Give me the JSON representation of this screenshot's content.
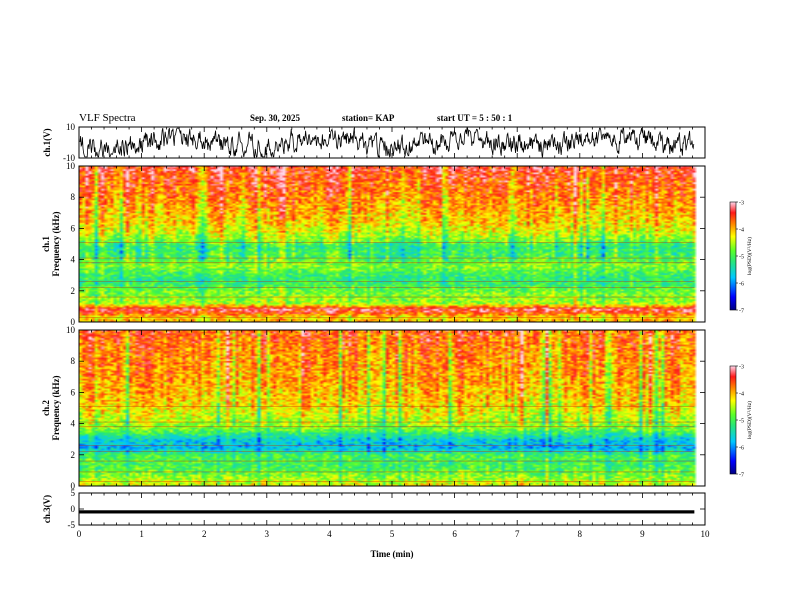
{
  "header": {
    "title": "VLF Spectra",
    "date": "Sep. 30, 2025",
    "station": "station= KAP",
    "start": "start  UT =   5  : 50 : 1"
  },
  "chart_data": [
    {
      "type": "line",
      "name": "ch1-waveform",
      "ylabel": "ch.1(V)",
      "ylim": [
        -10,
        10
      ],
      "yticks": [
        "10",
        "-10"
      ],
      "xlim": [
        0,
        10
      ]
    },
    {
      "type": "heatmap",
      "name": "ch1-spectrogram",
      "ylabel": "ch.1\nFrequency (kHz)",
      "ylim": [
        0,
        10
      ],
      "yticks": [
        "0",
        "2",
        "4",
        "6",
        "8",
        "10"
      ],
      "xlim": [
        0,
        10
      ],
      "data_end_min": 9.83,
      "colorbar": {
        "range": [
          -7,
          -3
        ],
        "ticks": [
          "-3",
          "-4",
          "-5",
          "-6",
          "-7"
        ],
        "label": "log(PSD)(V²/Hz)"
      },
      "level_profile_by_kHz": [
        {
          "f": 0.0,
          "v": -4.0
        },
        {
          "f": 0.3,
          "v": -4.2
        },
        {
          "f": 0.8,
          "v": -3.2
        },
        {
          "f": 1.2,
          "v": -4.6
        },
        {
          "f": 2.0,
          "v": -4.8
        },
        {
          "f": 2.6,
          "v": -5.2
        },
        {
          "f": 3.0,
          "v": -5.1
        },
        {
          "f": 3.6,
          "v": -4.7
        },
        {
          "f": 4.2,
          "v": -5.0
        },
        {
          "f": 4.8,
          "v": -5.2
        },
        {
          "f": 5.4,
          "v": -4.6
        },
        {
          "f": 6.2,
          "v": -4.2
        },
        {
          "f": 7.5,
          "v": -3.9
        },
        {
          "f": 9.0,
          "v": -3.6
        },
        {
          "f": 10.0,
          "v": -3.4
        }
      ]
    },
    {
      "type": "heatmap",
      "name": "ch2-spectrogram",
      "ylabel": "ch.2\nFrequency (kHz)",
      "ylim": [
        0,
        10
      ],
      "yticks": [
        "0",
        "2",
        "4",
        "6",
        "8",
        "10"
      ],
      "xlim": [
        0,
        10
      ],
      "data_end_min": 9.83,
      "colorbar": {
        "range": [
          -7,
          -3
        ],
        "ticks": [
          "-3",
          "-4",
          "-5",
          "-6",
          "-7"
        ],
        "label": "log(PSD)(V²/Hz)"
      },
      "level_profile_by_kHz": [
        {
          "f": 0.0,
          "v": -4.3
        },
        {
          "f": 0.5,
          "v": -4.6
        },
        {
          "f": 1.2,
          "v": -5.0
        },
        {
          "f": 2.0,
          "v": -5.0
        },
        {
          "f": 2.4,
          "v": -5.8
        },
        {
          "f": 3.0,
          "v": -5.6
        },
        {
          "f": 3.6,
          "v": -4.8
        },
        {
          "f": 4.5,
          "v": -4.4
        },
        {
          "f": 5.5,
          "v": -4.1
        },
        {
          "f": 7.0,
          "v": -3.9
        },
        {
          "f": 8.5,
          "v": -3.8
        },
        {
          "f": 10.0,
          "v": -3.6
        }
      ]
    },
    {
      "type": "line",
      "name": "ch3-waveform",
      "ylabel": "ch.3(V)",
      "ylim": [
        -5,
        5
      ],
      "yticks": [
        "5",
        "0",
        "-5"
      ],
      "xlim": [
        0,
        10
      ],
      "band_range_V": [
        -1.4,
        -0.4
      ]
    }
  ],
  "xaxis": {
    "label": "Time (min)",
    "ticks": [
      "0",
      "1",
      "2",
      "3",
      "4",
      "5",
      "6",
      "7",
      "8",
      "9",
      "10"
    ]
  }
}
